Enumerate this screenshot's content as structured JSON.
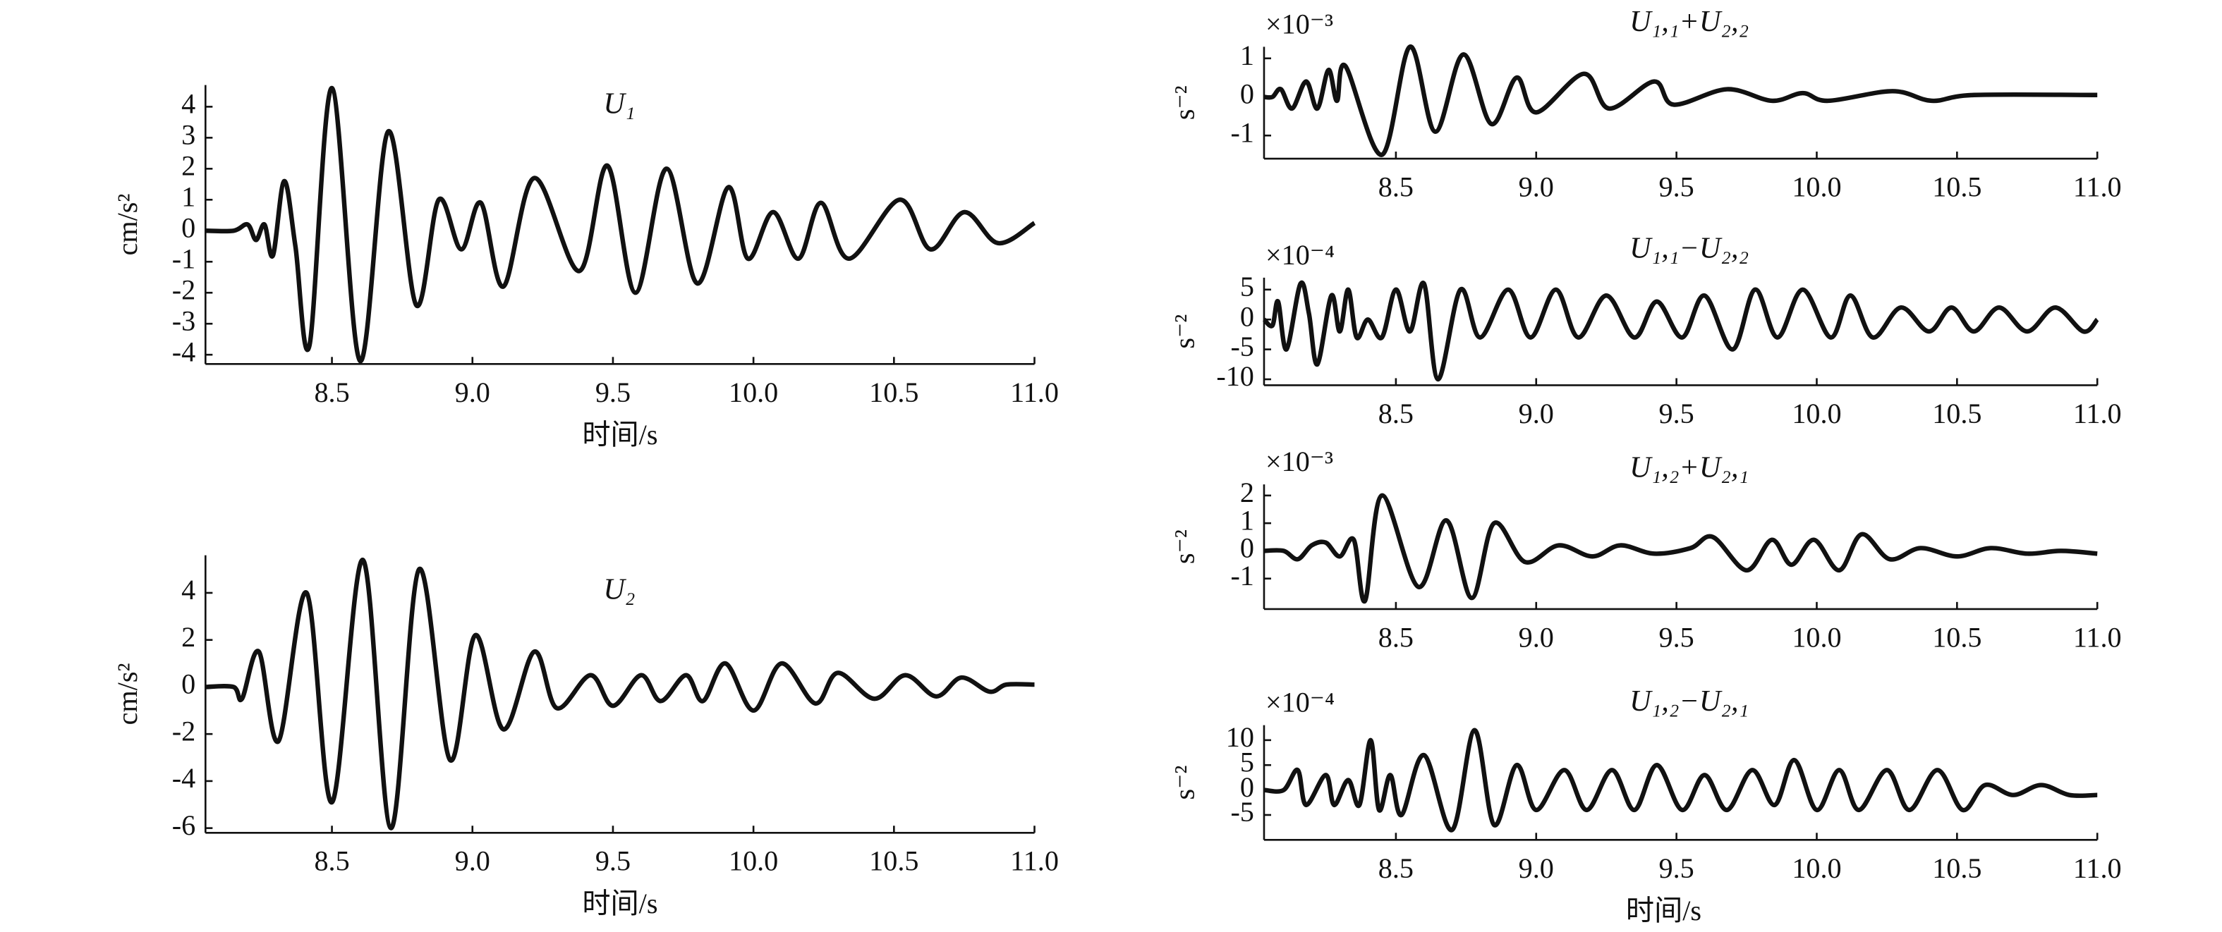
{
  "chart_data": [
    {
      "type": "line",
      "title": "U₁",
      "ylabel": "cm/s²",
      "xlabel": "时间/s",
      "color": "#111111",
      "xlim": [
        8.05,
        11.0
      ],
      "ylim": [
        -4.3,
        4.7
      ],
      "xticks": [
        8.5,
        {
          "value": 9,
          "label": "9.0"
        },
        9.5,
        {
          "value": 10,
          "label": "10.0"
        },
        10.5,
        {
          "value": 11,
          "label": "11.0"
        }
      ],
      "yticks": [
        -4,
        -3,
        -2,
        -1,
        0,
        1,
        2,
        3,
        4
      ],
      "x": [
        8.05,
        8.15,
        8.2,
        8.23,
        8.26,
        8.29,
        8.33,
        8.37,
        8.42,
        8.5,
        8.6,
        8.7,
        8.8,
        8.88,
        8.96,
        9.03,
        9.11,
        9.22,
        9.38,
        9.48,
        9.58,
        9.69,
        9.8,
        9.91,
        9.98,
        10.07,
        10.16,
        10.24,
        10.34,
        10.52,
        10.63,
        10.75,
        10.87,
        11.0
      ],
      "values": [
        0,
        0,
        0.2,
        -0.3,
        0.2,
        -0.8,
        1.6,
        -0.5,
        -3.7,
        4.6,
        -4.2,
        3.2,
        -2.4,
        1.0,
        -0.6,
        0.9,
        -1.8,
        1.7,
        -1.3,
        2.1,
        -2.0,
        2.0,
        -1.7,
        1.4,
        -0.9,
        0.6,
        -0.9,
        0.9,
        -0.9,
        1.0,
        -0.6,
        0.6,
        -0.4,
        0.25
      ]
    },
    {
      "type": "line",
      "title": "U₂",
      "ylabel": "cm/s²",
      "xlabel": "时间/s",
      "color": "#111111",
      "xlim": [
        8.05,
        11.0
      ],
      "ylim": [
        -6.2,
        5.6
      ],
      "xticks": [
        8.5,
        {
          "value": 9,
          "label": "9.0"
        },
        9.5,
        {
          "value": 10,
          "label": "10.0"
        },
        10.5,
        {
          "value": 11,
          "label": "11.0"
        }
      ],
      "yticks": [
        -6,
        -4,
        -2,
        0,
        2,
        4
      ],
      "x": [
        8.05,
        8.15,
        8.18,
        8.24,
        8.31,
        8.41,
        8.5,
        8.61,
        8.71,
        8.81,
        8.92,
        9.01,
        9.11,
        9.22,
        9.3,
        9.42,
        9.5,
        9.6,
        9.67,
        9.76,
        9.82,
        9.9,
        10.0,
        10.1,
        10.22,
        10.3,
        10.43,
        10.54,
        10.65,
        10.74,
        10.84,
        10.9,
        11.0
      ],
      "values": [
        0,
        0,
        -0.5,
        1.5,
        -2.3,
        4.0,
        -4.9,
        5.4,
        -6.0,
        5.0,
        -3.1,
        2.2,
        -1.8,
        1.5,
        -0.9,
        0.5,
        -0.8,
        0.5,
        -0.6,
        0.5,
        -0.6,
        1.0,
        -1.0,
        1.0,
        -0.7,
        0.6,
        -0.5,
        0.5,
        -0.4,
        0.4,
        -0.2,
        0.1,
        0.1
      ]
    },
    {
      "type": "line",
      "title": "U₁,₁+U₂,₂",
      "ylabel": "s⁻²",
      "multiplier": "×10⁻³",
      "color": "#111111",
      "xlim": [
        8.03,
        11.0
      ],
      "ylim": [
        -1.6,
        1.3
      ],
      "xticks": [
        8.5,
        {
          "value": 9,
          "label": "9.0"
        },
        9.5,
        {
          "value": 10,
          "label": "10.0"
        },
        10.5,
        {
          "value": 11,
          "label": "11.0"
        }
      ],
      "yticks": [
        -1,
        0,
        1
      ],
      "x": [
        8.03,
        8.06,
        8.09,
        8.13,
        8.18,
        8.22,
        8.26,
        8.29,
        8.32,
        8.45,
        8.55,
        8.64,
        8.74,
        8.84,
        8.93,
        9.0,
        9.17,
        9.26,
        9.42,
        9.49,
        9.68,
        9.84,
        9.95,
        10.04,
        10.27,
        10.41,
        10.56,
        11.0
      ],
      "values": [
        0,
        0,
        0.2,
        -0.3,
        0.4,
        -0.3,
        0.7,
        -0.1,
        0.8,
        -1.5,
        1.3,
        -0.9,
        1.1,
        -0.7,
        0.5,
        -0.4,
        0.6,
        -0.3,
        0.4,
        -0.2,
        0.2,
        -0.1,
        0.1,
        -0.1,
        0.15,
        -0.1,
        0.05,
        0.05
      ]
    },
    {
      "type": "line",
      "title": "U₁,₁−U₂,₂",
      "ylabel": "s⁻²",
      "multiplier": "×10⁻⁴",
      "color": "#111111",
      "xlim": [
        8.03,
        11.0
      ],
      "ylim": [
        -11,
        7
      ],
      "xticks": [
        8.5,
        {
          "value": 9,
          "label": "9.0"
        },
        9.5,
        {
          "value": 10,
          "label": "10.0"
        },
        10.5,
        {
          "value": 11,
          "label": "11.0"
        }
      ],
      "yticks": [
        -10,
        -5,
        0,
        5
      ],
      "x": [
        8.03,
        8.06,
        8.08,
        8.11,
        8.16,
        8.19,
        8.22,
        8.27,
        8.3,
        8.33,
        8.36,
        8.4,
        8.45,
        8.5,
        8.55,
        8.6,
        8.65,
        8.73,
        8.8,
        8.9,
        8.98,
        9.07,
        9.15,
        9.25,
        9.35,
        9.43,
        9.52,
        9.6,
        9.7,
        9.78,
        9.86,
        9.95,
        10.05,
        10.12,
        10.2,
        10.3,
        10.4,
        10.48,
        10.56,
        10.65,
        10.75,
        10.85,
        10.95,
        11.0
      ],
      "values": [
        0,
        -1,
        3,
        -5,
        6,
        1,
        -7.5,
        4,
        -2,
        5,
        -3,
        0,
        -3,
        5,
        -2,
        6,
        -10,
        5,
        -3,
        5,
        -3,
        5,
        -3,
        4,
        -3,
        3,
        -3,
        4,
        -5,
        5,
        -3,
        5,
        -3,
        4,
        -3,
        2,
        -2,
        2,
        -2,
        2,
        -2,
        2,
        -2,
        0
      ]
    },
    {
      "type": "line",
      "title": "U₁,₂+U₂,₁",
      "ylabel": "s⁻²",
      "multiplier": "×10⁻³",
      "color": "#111111",
      "xlim": [
        8.03,
        11.0
      ],
      "ylim": [
        -2.1,
        2.4
      ],
      "xticks": [
        8.5,
        {
          "value": 9,
          "label": "9.0"
        },
        9.5,
        {
          "value": 10,
          "label": "10.0"
        },
        10.5,
        {
          "value": 11,
          "label": "11.0"
        }
      ],
      "yticks": [
        -1,
        0,
        1,
        2
      ],
      "x": [
        8.03,
        8.1,
        8.15,
        8.2,
        8.25,
        8.3,
        8.35,
        8.39,
        8.45,
        8.58,
        8.68,
        8.77,
        8.85,
        8.96,
        9.08,
        9.2,
        9.3,
        9.42,
        9.55,
        9.63,
        9.75,
        9.84,
        9.91,
        9.99,
        10.08,
        10.16,
        10.26,
        10.37,
        10.5,
        10.62,
        10.75,
        10.87,
        11.0
      ],
      "values": [
        0,
        0,
        -0.3,
        0.2,
        0.3,
        -0.2,
        0.4,
        -1.8,
        2.0,
        -1.3,
        1.1,
        -1.7,
        1.0,
        -0.4,
        0.2,
        -0.2,
        0.2,
        -0.1,
        0.1,
        0.5,
        -0.7,
        0.4,
        -0.5,
        0.4,
        -0.7,
        0.6,
        -0.3,
        0.1,
        -0.2,
        0.1,
        -0.1,
        0,
        -0.1
      ]
    },
    {
      "type": "line",
      "title": "U₁,₂−U₂,₁",
      "ylabel": "s⁻²",
      "multiplier": "×10⁻⁴",
      "xlabel": "时间/s",
      "color": "#111111",
      "xlim": [
        8.03,
        11.0
      ],
      "ylim": [
        -10,
        13
      ],
      "xticks": [
        8.5,
        {
          "value": 9,
          "label": "9.0"
        },
        9.5,
        {
          "value": 10,
          "label": "10.0"
        },
        10.5,
        {
          "value": 11,
          "label": "11.0"
        }
      ],
      "yticks": [
        -5,
        0,
        5,
        10
      ],
      "x": [
        8.03,
        8.1,
        8.15,
        8.18,
        8.25,
        8.28,
        8.33,
        8.37,
        8.41,
        8.44,
        8.48,
        8.52,
        8.6,
        8.7,
        8.78,
        8.85,
        8.93,
        9.0,
        9.1,
        9.18,
        9.27,
        9.35,
        9.43,
        9.52,
        9.6,
        9.68,
        9.77,
        9.85,
        9.92,
        10.0,
        10.08,
        10.15,
        10.25,
        10.33,
        10.43,
        10.52,
        10.6,
        10.7,
        10.8,
        10.9,
        11.0
      ],
      "values": [
        0,
        0,
        4,
        -3,
        3,
        -3,
        2,
        -3,
        10,
        -4,
        3,
        -5,
        7,
        -8,
        12,
        -7,
        5,
        -4,
        4,
        -4,
        4,
        -4,
        5,
        -4,
        3,
        -4,
        4,
        -3,
        6,
        -4,
        4,
        -4,
        4,
        -4,
        4,
        -4,
        1,
        -1,
        1,
        -1,
        -1
      ]
    }
  ]
}
